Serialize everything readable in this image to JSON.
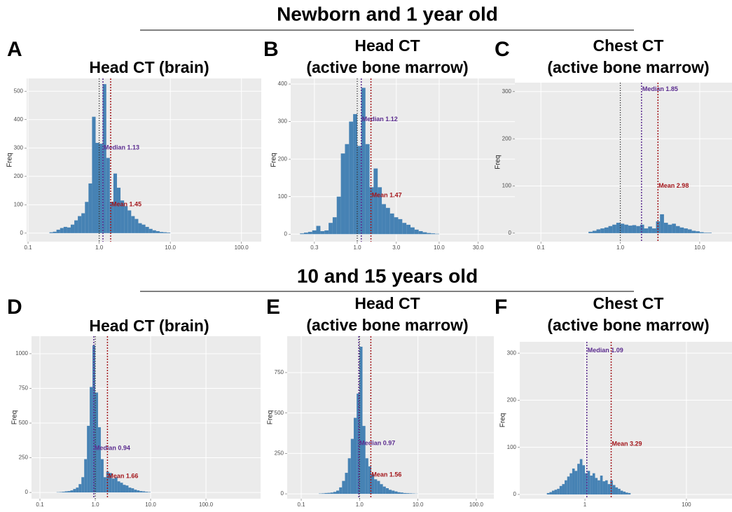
{
  "sections": [
    "Newborn and 1 year old",
    "10 and 15 years old"
  ],
  "chart_data": [
    {
      "type": "histogram",
      "panel": "A",
      "title": [
        "Head CT (brain)"
      ],
      "ylabel": "Freq",
      "log_x": true,
      "grid": true,
      "color": "#4682b4",
      "xlim": [
        0.0955,
        190
      ],
      "ylim": [
        -30,
        545
      ],
      "xticks": [
        0.1,
        {
          "value": 1,
          "label": "1.0"
        },
        {
          "value": 10,
          "label": "10.0"
        },
        {
          "value": 100,
          "label": "100.0"
        }
      ],
      "yticks": [
        0,
        100,
        200,
        300,
        400,
        500
      ],
      "bins": [
        0.2,
        0.224,
        0.251,
        0.282,
        0.316,
        0.355,
        0.398,
        0.447,
        0.501,
        0.562,
        0.631,
        0.708,
        0.794,
        0.891,
        1,
        1.122,
        1.259,
        1.413,
        1.585,
        1.778,
        1.995,
        2.239,
        2.512,
        2.818,
        3.162,
        3.548,
        3.981,
        4.467,
        5.012,
        5.623,
        6.31,
        7.079,
        7.943,
        8.913,
        10
      ],
      "counts": [
        3,
        5,
        12,
        18,
        22,
        20,
        30,
        45,
        60,
        70,
        110,
        175,
        410,
        318,
        315,
        525,
        265,
        110,
        210,
        160,
        115,
        95,
        80,
        60,
        50,
        35,
        30,
        22,
        15,
        10,
        7,
        4,
        3,
        2
      ],
      "reference_line": 1,
      "annotations": [
        {
          "label": "Median 1.13",
          "value": 1.13,
          "color": "#5b2c8f"
        },
        {
          "label": "Mean 1.45",
          "value": 1.45,
          "color": "#a3161b"
        }
      ]
    },
    {
      "type": "histogram",
      "panel": "B",
      "title": [
        "Head CT",
        "(active bone marrow)"
      ],
      "ylabel": "Freq",
      "log_x": true,
      "grid": true,
      "color": "#4682b4",
      "xlim": [
        0.154,
        84
      ],
      "ylim": [
        -20,
        415
      ],
      "xticks": [
        0.3,
        {
          "value": 1,
          "label": "1.0"
        },
        {
          "value": 3,
          "label": "3.0"
        },
        {
          "value": 10,
          "label": "10.0"
        },
        {
          "value": 30,
          "label": "30.0"
        }
      ],
      "yticks": [
        0,
        100,
        200,
        300,
        400
      ],
      "bins": [
        0.2,
        0.224,
        0.251,
        0.282,
        0.316,
        0.355,
        0.398,
        0.447,
        0.501,
        0.562,
        0.631,
        0.708,
        0.794,
        0.891,
        1,
        1.122,
        1.259,
        1.413,
        1.585,
        1.778,
        1.995,
        2.239,
        2.512,
        2.818,
        3.162,
        3.548,
        3.981,
        4.467,
        5.012,
        5.623,
        6.31,
        7.079,
        7.943,
        8.913,
        10
      ],
      "counts": [
        2,
        4,
        6,
        10,
        22,
        8,
        10,
        30,
        45,
        100,
        215,
        240,
        300,
        320,
        235,
        390,
        240,
        125,
        175,
        125,
        80,
        70,
        55,
        45,
        40,
        30,
        25,
        18,
        12,
        8,
        5,
        3,
        2,
        1
      ],
      "reference_line": 1,
      "annotations": [
        {
          "label": "Median 1.12",
          "value": 1.12,
          "color": "#5b2c8f"
        },
        {
          "label": "Mean 1.47",
          "value": 1.47,
          "color": "#a3161b"
        }
      ]
    },
    {
      "type": "histogram",
      "panel": "C",
      "title": [
        "Chest CT",
        "(active bone marrow)"
      ],
      "ylabel": "Freq",
      "log_x": true,
      "grid": true,
      "color": "#4682b4",
      "xlim": [
        0.047,
        25.5
      ],
      "ylim": [
        -18,
        319
      ],
      "xticks": [
        0.1,
        {
          "value": 1,
          "label": "1.0"
        },
        {
          "value": 10,
          "label": "10.0"
        }
      ],
      "yticks": [
        0,
        100,
        200,
        300
      ],
      "bins": [
        0.398,
        0.447,
        0.501,
        0.562,
        0.631,
        0.708,
        0.794,
        0.891,
        1,
        1.122,
        1.259,
        1.413,
        1.585,
        1.778,
        1.995,
        2.239,
        2.512,
        2.818,
        3.162,
        3.548,
        3.981,
        4.467,
        5.012,
        5.623,
        6.31,
        7.079,
        7.943,
        8.913,
        10,
        11.22,
        12.59,
        14.13
      ],
      "counts": [
        3,
        5,
        8,
        10,
        12,
        15,
        18,
        22,
        20,
        18,
        16,
        17,
        15,
        18,
        10,
        14,
        10,
        25,
        40,
        22,
        18,
        20,
        15,
        12,
        10,
        8,
        5,
        4,
        2,
        1,
        1
      ],
      "reference_line": 1,
      "annotations": [
        {
          "label": "Median 1.85",
          "value": 1.85,
          "color": "#5b2c8f"
        },
        {
          "label": "Mean 2.98",
          "value": 2.98,
          "color": "#a3161b"
        }
      ]
    },
    {
      "type": "histogram",
      "panel": "D",
      "title": [
        "Head CT (brain)"
      ],
      "ylabel": "Freq",
      "log_x": true,
      "grid": true,
      "color": "#4682b4",
      "xlim": [
        0.0705,
        970
      ],
      "ylim": [
        -45,
        1126
      ],
      "xticks": [
        0.1,
        {
          "value": 1,
          "label": "1.0"
        },
        {
          "value": 10,
          "label": "10.0"
        },
        {
          "value": 100,
          "label": "100.0"
        }
      ],
      "yticks": [
        0,
        250,
        500,
        750,
        1000
      ],
      "bins": [
        0.2,
        0.224,
        0.251,
        0.282,
        0.316,
        0.355,
        0.398,
        0.447,
        0.501,
        0.562,
        0.631,
        0.708,
        0.794,
        0.891,
        1,
        1.122,
        1.259,
        1.413,
        1.585,
        1.778,
        1.995,
        2.239,
        2.512,
        2.818,
        3.162,
        3.548,
        3.981,
        4.467,
        5.012,
        5.623,
        6.31,
        7.079,
        7.943,
        8.913,
        10
      ],
      "counts": [
        2,
        3,
        5,
        8,
        10,
        15,
        25,
        35,
        60,
        110,
        240,
        480,
        760,
        1060,
        720,
        470,
        240,
        110,
        150,
        140,
        100,
        110,
        80,
        70,
        55,
        50,
        35,
        30,
        20,
        15,
        10,
        8,
        5,
        3
      ],
      "reference_line": 1,
      "annotations": [
        {
          "label": "Median 0.94",
          "value": 0.94,
          "color": "#5b2c8f"
        },
        {
          "label": "Mean 1.66",
          "value": 1.66,
          "color": "#a3161b"
        }
      ]
    },
    {
      "type": "histogram",
      "panel": "E",
      "title": [
        "Head CT",
        "(active bone marrow)"
      ],
      "ylabel": "Freq",
      "log_x": true,
      "grid": true,
      "color": "#4682b4",
      "xlim": [
        0.0575,
        200
      ],
      "ylim": [
        -30,
        975
      ],
      "xticks": [
        0.1,
        {
          "value": 1,
          "label": "1.0"
        },
        {
          "value": 10,
          "label": "10.0"
        },
        {
          "value": 100,
          "label": "100.0"
        }
      ],
      "yticks": [
        0,
        250,
        500,
        750
      ],
      "bins": [
        0.2,
        0.224,
        0.251,
        0.282,
        0.316,
        0.355,
        0.398,
        0.447,
        0.501,
        0.562,
        0.631,
        0.708,
        0.794,
        0.891,
        1,
        1.122,
        1.259,
        1.413,
        1.585,
        1.778,
        1.995,
        2.239,
        2.512,
        2.818,
        3.162,
        3.548,
        3.981,
        4.467,
        5.012,
        5.623,
        6.31,
        7.079,
        7.943,
        8.913,
        10
      ],
      "counts": [
        2,
        3,
        5,
        6,
        8,
        12,
        20,
        40,
        80,
        130,
        220,
        340,
        470,
        620,
        910,
        420,
        220,
        170,
        120,
        90,
        80,
        60,
        45,
        35,
        25,
        20,
        15,
        10,
        8,
        5,
        4,
        3,
        2,
        1
      ],
      "reference_line": 1,
      "annotations": [
        {
          "label": "Median 0.97",
          "value": 0.97,
          "color": "#5b2c8f"
        },
        {
          "label": "Mean 1.56",
          "value": 1.56,
          "color": "#a3161b"
        }
      ]
    },
    {
      "type": "histogram",
      "panel": "F",
      "title": [
        "Chest CT",
        "(active bone marrow)"
      ],
      "ylabel": "Freq",
      "log_x": true,
      "grid": true,
      "color": "#4682b4",
      "xlim": [
        0.052,
        790
      ],
      "ylim": [
        -9,
        324
      ],
      "xticks": [
        1,
        100
      ],
      "yticks": [
        0,
        100,
        200,
        300
      ],
      "bins": [
        0.178,
        0.2,
        0.224,
        0.251,
        0.282,
        0.316,
        0.355,
        0.398,
        0.447,
        0.501,
        0.562,
        0.631,
        0.708,
        0.794,
        0.891,
        1,
        1.122,
        1.259,
        1.413,
        1.585,
        1.778,
        1.995,
        2.239,
        2.512,
        2.818,
        3.162,
        3.548,
        3.981,
        4.467,
        5.012,
        5.623,
        6.31,
        7.079,
        7.943
      ],
      "counts": [
        3,
        5,
        8,
        10,
        12,
        18,
        22,
        30,
        38,
        45,
        55,
        50,
        65,
        75,
        62,
        45,
        50,
        40,
        45,
        35,
        30,
        40,
        28,
        30,
        22,
        30,
        20,
        15,
        12,
        8,
        6,
        4,
        3
      ],
      "annotations": [
        {
          "label": "Median 1.09",
          "value": 1.09,
          "color": "#5b2c8f"
        },
        {
          "label": "Mean 3.29",
          "value": 3.29,
          "color": "#a3161b"
        }
      ]
    }
  ]
}
